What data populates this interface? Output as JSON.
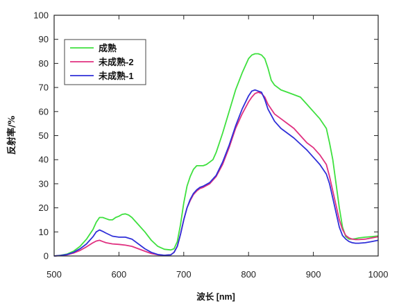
{
  "chart_data": {
    "type": "line",
    "title": "",
    "xlabel": "波长 [nm]",
    "ylabel": "反射率/%",
    "xlim": [
      500,
      1000
    ],
    "ylim": [
      0,
      100
    ],
    "xticks": [
      500,
      600,
      700,
      800,
      900,
      1000
    ],
    "yticks": [
      0,
      10,
      20,
      30,
      40,
      50,
      60,
      70,
      80,
      90,
      100
    ],
    "grid": false,
    "legend_position": "top-left",
    "series": [
      {
        "name": "成熟",
        "color": "#3ee03e",
        "x": [
          500,
          510,
          520,
          530,
          540,
          550,
          560,
          565,
          570,
          575,
          580,
          585,
          590,
          595,
          600,
          605,
          610,
          615,
          620,
          630,
          640,
          650,
          660,
          670,
          680,
          685,
          690,
          695,
          700,
          705,
          710,
          715,
          720,
          725,
          730,
          735,
          740,
          745,
          750,
          760,
          770,
          780,
          790,
          800,
          805,
          810,
          815,
          820,
          825,
          830,
          835,
          840,
          850,
          860,
          870,
          880,
          890,
          900,
          910,
          920,
          925,
          930,
          935,
          940,
          945,
          950,
          955,
          960,
          965,
          970,
          980,
          990,
          1000
        ],
        "y": [
          0,
          0.3,
          0.8,
          2,
          4,
          7,
          11,
          14,
          16,
          16,
          15.5,
          15,
          15,
          16,
          16.5,
          17.3,
          17.5,
          17,
          16,
          13,
          10,
          6.5,
          4,
          2.8,
          2.5,
          3,
          6,
          13,
          22,
          29,
          33,
          36,
          37.5,
          37.5,
          37.5,
          38,
          39,
          40,
          43,
          51,
          60,
          69,
          76,
          82,
          83.5,
          84,
          84,
          83.5,
          82,
          78,
          73,
          71,
          69,
          68,
          67,
          66,
          63,
          60,
          57,
          53,
          47,
          40,
          30,
          20,
          12,
          8,
          7,
          7,
          7.2,
          7.5,
          7.8,
          8,
          8.3
        ]
      },
      {
        "name": "未成熟-2",
        "color": "#e03080",
        "x": [
          500,
          510,
          520,
          530,
          540,
          550,
          560,
          565,
          570,
          575,
          580,
          590,
          600,
          610,
          620,
          630,
          640,
          650,
          660,
          670,
          680,
          685,
          690,
          695,
          700,
          705,
          710,
          715,
          720,
          725,
          730,
          740,
          750,
          760,
          770,
          780,
          790,
          800,
          805,
          810,
          815,
          820,
          825,
          830,
          840,
          850,
          860,
          870,
          880,
          890,
          900,
          910,
          920,
          925,
          930,
          935,
          940,
          945,
          950,
          955,
          960,
          965,
          970,
          980,
          990,
          1000
        ],
        "y": [
          0,
          0.2,
          0.5,
          1.2,
          2.3,
          3.8,
          5.5,
          6.2,
          6.5,
          6,
          5.5,
          5,
          4.8,
          4.5,
          4,
          3,
          2,
          1,
          0.5,
          0.3,
          0.5,
          1.5,
          4,
          9,
          15,
          20,
          23,
          25.5,
          27,
          28,
          28.5,
          30,
          33,
          38,
          45,
          53,
          59,
          64,
          66,
          67.5,
          68,
          67.5,
          66,
          63,
          59,
          57,
          55,
          53,
          50,
          47,
          45,
          42,
          38,
          33,
          27,
          21,
          15,
          11,
          8.5,
          7.5,
          7,
          6.8,
          6.8,
          7,
          7.5,
          8
        ]
      },
      {
        "name": "未成熟-1",
        "color": "#2f2fd8",
        "x": [
          500,
          510,
          520,
          530,
          540,
          550,
          560,
          565,
          570,
          575,
          580,
          590,
          600,
          610,
          620,
          630,
          640,
          650,
          660,
          670,
          680,
          685,
          690,
          695,
          700,
          705,
          710,
          715,
          720,
          725,
          730,
          740,
          750,
          760,
          770,
          780,
          790,
          800,
          805,
          810,
          815,
          820,
          825,
          830,
          840,
          850,
          860,
          870,
          880,
          890,
          900,
          910,
          920,
          925,
          930,
          935,
          940,
          945,
          950,
          955,
          960,
          965,
          970,
          980,
          990,
          1000
        ],
        "y": [
          0,
          0.2,
          0.6,
          1.5,
          3,
          5,
          8,
          10,
          10.8,
          10.2,
          9.5,
          8.2,
          7.8,
          7.8,
          7,
          5,
          3,
          1.5,
          0.6,
          0.3,
          0.5,
          1.5,
          4,
          9,
          15,
          20,
          23.5,
          26,
          27.5,
          28.5,
          29,
          30.5,
          33.5,
          39,
          46,
          54,
          61,
          66.5,
          68.5,
          69,
          68.5,
          68,
          65,
          61,
          56,
          53,
          51,
          49,
          46.5,
          44,
          41,
          38,
          34,
          30,
          24,
          18,
          12,
          8.5,
          7,
          6,
          5.5,
          5.3,
          5.3,
          5.5,
          6,
          6.5
        ]
      }
    ]
  }
}
